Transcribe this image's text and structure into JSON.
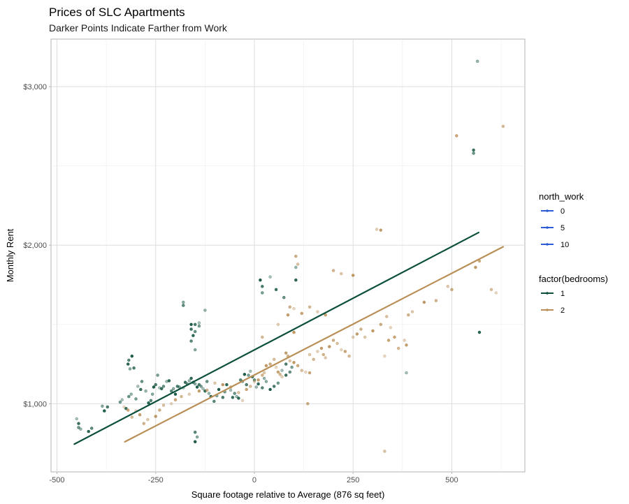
{
  "chart_data": {
    "type": "scatter",
    "title": "Prices of SLC Apartments",
    "subtitle": "Darker Points Indicate Farther from Work",
    "xlabel": "Square footage relative to Average (876 sq feet)",
    "ylabel": "Monthly Rent",
    "xlim": [
      -515,
      685
    ],
    "ylim": [
      570,
      3300
    ],
    "x_ticks": [
      -500,
      -250,
      0,
      250,
      500
    ],
    "x_tick_labels": [
      "-500",
      "-250",
      "0",
      "250",
      "500"
    ],
    "y_ticks": [
      1000,
      2000,
      3000
    ],
    "y_tick_labels": [
      "$1,000",
      "$2,000",
      "$3,000"
    ],
    "grid": true,
    "legend_position": "right",
    "legends": [
      {
        "title": "north_work",
        "entries": [
          {
            "label": "0",
            "color": "#2c5bd6"
          },
          {
            "label": "5",
            "color": "#2c5bd6"
          },
          {
            "label": "10",
            "color": "#2c5bd6"
          }
        ]
      },
      {
        "title": "factor(bedrooms)",
        "entries": [
          {
            "label": "1",
            "color": "#0c4f3c"
          },
          {
            "label": "2",
            "color": "#b98f57"
          }
        ]
      }
    ],
    "series": [
      {
        "name": "1",
        "color": "#0c4f3c",
        "fit_line": [
          [
            -456,
            745
          ],
          [
            568,
            2080
          ]
        ],
        "points": [
          [
            -450,
            905
          ],
          [
            -445,
            875
          ],
          [
            -445,
            850
          ],
          [
            -440,
            840
          ],
          [
            -420,
            825
          ],
          [
            -412,
            845
          ],
          [
            -385,
            985
          ],
          [
            -380,
            955
          ],
          [
            -372,
            980
          ],
          [
            -340,
            1010
          ],
          [
            -335,
            1025
          ],
          [
            -325,
            970
          ],
          [
            -318,
            1045
          ],
          [
            -312,
            1060
          ],
          [
            -320,
            1250
          ],
          [
            -318,
            1275
          ],
          [
            -315,
            1220
          ],
          [
            -310,
            1300
          ],
          [
            -305,
            1225
          ],
          [
            -300,
            1030
          ],
          [
            -295,
            1110
          ],
          [
            -288,
            1090
          ],
          [
            -285,
            1140
          ],
          [
            -275,
            1080
          ],
          [
            -268,
            1005
          ],
          [
            -262,
            1020
          ],
          [
            -258,
            1060
          ],
          [
            -255,
            1105
          ],
          [
            -250,
            1120
          ],
          [
            -245,
            1180
          ],
          [
            -240,
            1100
          ],
          [
            -235,
            1095
          ],
          [
            -230,
            1110
          ],
          [
            -222,
            1140
          ],
          [
            -216,
            1145
          ],
          [
            -210,
            1080
          ],
          [
            -205,
            1095
          ],
          [
            -200,
            1060
          ],
          [
            -195,
            1110
          ],
          [
            -190,
            1105
          ],
          [
            -180,
            1100
          ],
          [
            -175,
            1135
          ],
          [
            -170,
            1125
          ],
          [
            -165,
            1145
          ],
          [
            -160,
            1160
          ],
          [
            -155,
            1135
          ],
          [
            -150,
            1125
          ],
          [
            -145,
            1105
          ],
          [
            -140,
            1120
          ],
          [
            -135,
            1110
          ],
          [
            -130,
            1095
          ],
          [
            -125,
            1080
          ],
          [
            -120,
            1140
          ],
          [
            -115,
            1065
          ],
          [
            -110,
            1045
          ],
          [
            -102,
            1015
          ],
          [
            -95,
            1050
          ],
          [
            -90,
            1090
          ],
          [
            -80,
            1040
          ],
          [
            -75,
            1075
          ],
          [
            -60,
            1085
          ],
          [
            -55,
            1040
          ],
          [
            -50,
            1065
          ],
          [
            -45,
            1045
          ],
          [
            -40,
            1035
          ],
          [
            -35,
            1150
          ],
          [
            -30,
            1140
          ],
          [
            -25,
            1185
          ],
          [
            -20,
            1120
          ],
          [
            -15,
            1180
          ],
          [
            -10,
            1205
          ],
          [
            -5,
            1170
          ],
          [
            0,
            1150
          ],
          [
            5,
            1105
          ],
          [
            10,
            1125
          ],
          [
            -180,
            1620
          ],
          [
            -180,
            1640
          ],
          [
            -160,
            1500
          ],
          [
            -150,
            1500
          ],
          [
            -140,
            1490
          ],
          [
            -140,
            1510
          ],
          [
            -160,
            1470
          ],
          [
            -150,
            1455
          ],
          [
            -125,
            1590
          ],
          [
            -155,
            1430
          ],
          [
            -160,
            1395
          ],
          [
            -150,
            1340
          ],
          [
            15,
            1780
          ],
          [
            20,
            1740
          ],
          [
            20,
            1700
          ],
          [
            40,
            1800
          ],
          [
            55,
            1720
          ],
          [
            75,
            1670
          ],
          [
            105,
            1860
          ],
          [
            105,
            1780
          ],
          [
            -150,
            820
          ],
          [
            -145,
            790
          ],
          [
            -150,
            760
          ],
          [
            80,
            1250
          ],
          [
            95,
            1230
          ],
          [
            385,
            1195
          ],
          [
            555,
            2600
          ],
          [
            555,
            2580
          ],
          [
            565,
            3160
          ],
          [
            570,
            1450
          ],
          [
            20,
            1100
          ],
          [
            30,
            1140
          ],
          [
            40,
            1090
          ],
          [
            50,
            1110
          ],
          [
            60,
            1130
          ],
          [
            70,
            1210
          ],
          [
            80,
            1180
          ],
          [
            90,
            1200
          ],
          [
            25,
            1160
          ],
          [
            -70,
            1120
          ]
        ]
      },
      {
        "name": "2",
        "color": "#b98f57",
        "fit_line": [
          [
            -328,
            760
          ],
          [
            630,
            1990
          ]
        ],
        "points": [
          [
            -330,
            980
          ],
          [
            -320,
            960
          ],
          [
            -310,
            915
          ],
          [
            -300,
            955
          ],
          [
            -290,
            930
          ],
          [
            -280,
            875
          ],
          [
            -270,
            900
          ],
          [
            -250,
            920
          ],
          [
            -240,
            960
          ],
          [
            -230,
            990
          ],
          [
            -210,
            1000
          ],
          [
            -200,
            1025
          ],
          [
            -185,
            1045
          ],
          [
            -165,
            1060
          ],
          [
            -140,
            1080
          ],
          [
            -120,
            1085
          ],
          [
            -100,
            1130
          ],
          [
            -80,
            1120
          ],
          [
            -60,
            1105
          ],
          [
            -40,
            1070
          ],
          [
            -30,
            1020
          ],
          [
            -20,
            1090
          ],
          [
            -10,
            1110
          ],
          [
            0,
            1140
          ],
          [
            10,
            1150
          ],
          [
            20,
            1180
          ],
          [
            25,
            1195
          ],
          [
            30,
            1240
          ],
          [
            40,
            1250
          ],
          [
            50,
            1280
          ],
          [
            55,
            1230
          ],
          [
            60,
            1200
          ],
          [
            65,
            1185
          ],
          [
            70,
            1170
          ],
          [
            80,
            1320
          ],
          [
            85,
            1300
          ],
          [
            90,
            1270
          ],
          [
            100,
            1260
          ],
          [
            110,
            1240
          ],
          [
            120,
            1210
          ],
          [
            130,
            1200
          ],
          [
            140,
            1195
          ],
          [
            150,
            1280
          ],
          [
            160,
            1330
          ],
          [
            170,
            1350
          ],
          [
            175,
            1310
          ],
          [
            180,
            1290
          ],
          [
            190,
            1360
          ],
          [
            200,
            1400
          ],
          [
            210,
            1380
          ],
          [
            220,
            1340
          ],
          [
            230,
            1330
          ],
          [
            240,
            1300
          ],
          [
            250,
            1420
          ],
          [
            260,
            1440
          ],
          [
            270,
            1470
          ],
          [
            280,
            1420
          ],
          [
            300,
            1460
          ],
          [
            320,
            1500
          ],
          [
            335,
            1550
          ],
          [
            345,
            1480
          ],
          [
            355,
            1420
          ],
          [
            365,
            1350
          ],
          [
            380,
            1400
          ],
          [
            385,
            1370
          ],
          [
            390,
            1560
          ],
          [
            400,
            1580
          ],
          [
            430,
            1640
          ],
          [
            500,
            1720
          ],
          [
            600,
            1720
          ],
          [
            612,
            1700
          ],
          [
            512,
            2690
          ],
          [
            630,
            2750
          ],
          [
            310,
            2100
          ],
          [
            320,
            2095
          ],
          [
            200,
            1840
          ],
          [
            220,
            1820
          ],
          [
            250,
            1810
          ],
          [
            105,
            1930
          ],
          [
            110,
            1880
          ],
          [
            100,
            1600
          ],
          [
            120,
            1570
          ],
          [
            140,
            1610
          ],
          [
            160,
            1580
          ],
          [
            180,
            1560
          ],
          [
            90,
            1610
          ],
          [
            140,
            1310
          ],
          [
            100,
            1450
          ],
          [
            135,
            1000
          ],
          [
            330,
            700
          ],
          [
            330,
            1300
          ],
          [
            340,
            1400
          ],
          [
            20,
            1420
          ],
          [
            60,
            1500
          ],
          [
            85,
            1560
          ],
          [
            460,
            1650
          ],
          [
            490,
            1740
          ],
          [
            560,
            1860
          ],
          [
            570,
            1900
          ]
        ]
      }
    ]
  }
}
